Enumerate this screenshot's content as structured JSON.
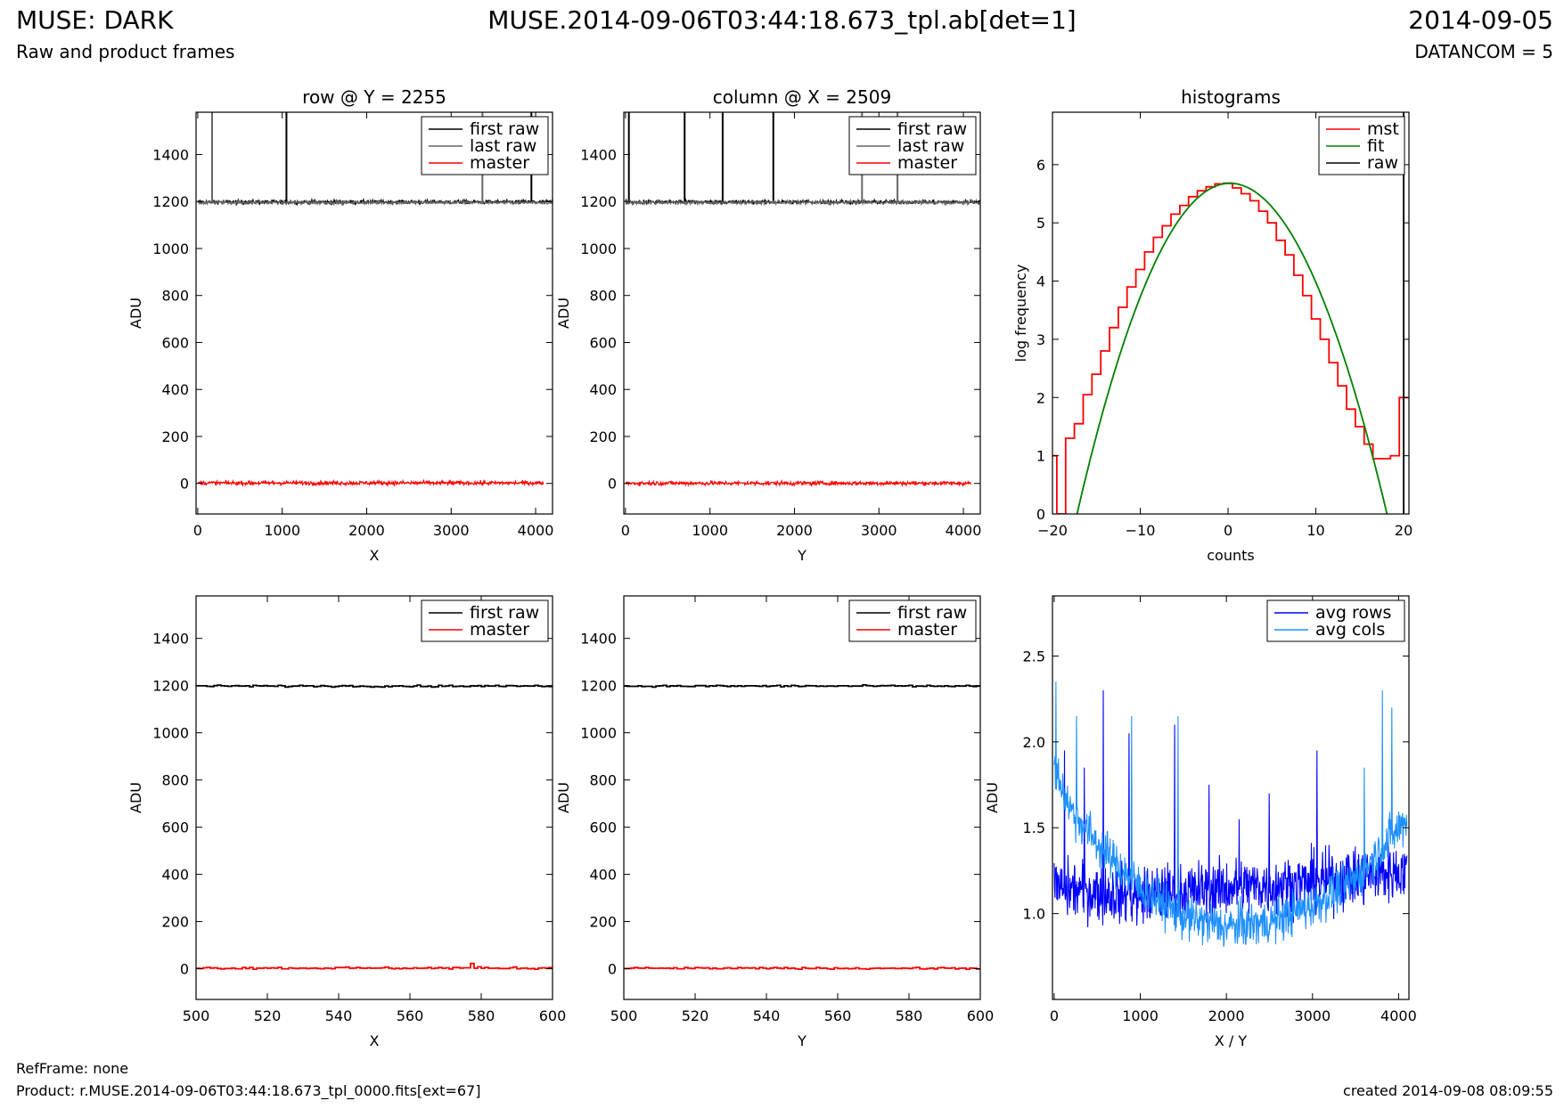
{
  "header": {
    "title": "MUSE: DARK",
    "file": "MUSE.2014-09-06T03:44:18.673_tpl.ab[det=1]",
    "date": "2014-09-05",
    "subtitle": "Raw and product frames",
    "datancom": "DATANCOM = 5"
  },
  "footer": {
    "refframe": "RefFrame: none",
    "product": "Product: r.MUSE.2014-09-06T03:44:18.673_tpl_0000.fits[ext=67]",
    "created": "created 2014-09-08 08:09:55"
  },
  "colors": {
    "first_raw": "#000000",
    "last_raw": "#666666",
    "master": "#ff0000",
    "mst": "#ff0000",
    "fit": "#008000",
    "raw": "#000000",
    "avg_rows": "#0000ff",
    "avg_cols": "#1e90ff"
  },
  "chart_data": [
    {
      "id": "row",
      "type": "line",
      "title": "row @ Y = 2255",
      "xlabel": "X",
      "ylabel": "ADU",
      "xlim": [
        -20,
        4200
      ],
      "ylim": [
        -130,
        1580
      ],
      "xticks": [
        0,
        1000,
        2000,
        3000,
        4000
      ],
      "yticks": [
        0,
        200,
        400,
        600,
        800,
        1000,
        1200,
        1400
      ],
      "legend": "top-right",
      "series": [
        {
          "name": "first raw",
          "color_key": "first_raw",
          "level": 1198,
          "noise": 6,
          "x_range": [
            0,
            4200
          ],
          "spikes_x": [
            1050,
            3950
          ]
        },
        {
          "name": "last raw",
          "color_key": "last_raw",
          "level": 1196,
          "noise": 5,
          "x_range": [
            0,
            4200
          ],
          "spikes_x": [
            170,
            3370
          ]
        },
        {
          "name": "master",
          "color_key": "master",
          "level": 2,
          "noise": 6,
          "x_range": [
            0,
            4096
          ],
          "spikes_x": []
        }
      ]
    },
    {
      "id": "column",
      "type": "line",
      "title": "column @ X = 2509",
      "xlabel": "Y",
      "ylabel": "ADU",
      "xlim": [
        -20,
        4200
      ],
      "ylim": [
        -130,
        1580
      ],
      "xticks": [
        0,
        1000,
        2000,
        3000,
        4000
      ],
      "yticks": [
        0,
        200,
        400,
        600,
        800,
        1000,
        1200,
        1400
      ],
      "legend": "top-right",
      "series": [
        {
          "name": "first raw",
          "color_key": "first_raw",
          "level": 1198,
          "noise": 6,
          "x_range": [
            0,
            4200
          ],
          "spikes_x": [
            40,
            700,
            1150,
            1750
          ]
        },
        {
          "name": "last raw",
          "color_key": "last_raw",
          "level": 1196,
          "noise": 5,
          "x_range": [
            0,
            4200
          ],
          "spikes_x": [
            2800,
            3220
          ]
        },
        {
          "name": "master",
          "color_key": "master",
          "level": 1,
          "noise": 6,
          "x_range": [
            0,
            4096
          ],
          "spikes_x": []
        }
      ]
    },
    {
      "id": "histograms",
      "type": "line",
      "title": "histograms",
      "xlabel": "counts",
      "ylabel": "log frequency",
      "xlim": [
        -20,
        20.6
      ],
      "ylim": [
        0,
        6.9
      ],
      "xticks": [
        -20,
        -10,
        0,
        10,
        20
      ],
      "xtick_labels": [
        "−20",
        "−10",
        "0",
        "10",
        "20"
      ],
      "yticks": [
        0,
        1,
        2,
        3,
        4,
        5,
        6
      ],
      "legend": "top-right",
      "series": [
        {
          "name": "mst",
          "color_key": "mst",
          "drawstyle": "steps",
          "x": [
            -20,
            -19,
            -18,
            -17,
            -16,
            -15,
            -14,
            -13,
            -12,
            -11,
            -10,
            -9,
            -8,
            -7,
            -6,
            -5,
            -4,
            -3,
            -2,
            -1,
            0,
            1,
            2,
            3,
            4,
            5,
            6,
            7,
            8,
            9,
            10,
            11,
            12,
            13,
            14,
            15,
            16,
            17,
            18,
            19,
            20
          ],
          "y": [
            1.0,
            0,
            1.3,
            1.55,
            2.05,
            2.4,
            2.8,
            3.2,
            3.55,
            3.9,
            4.2,
            4.5,
            4.75,
            4.95,
            5.15,
            5.3,
            5.45,
            5.55,
            5.62,
            5.67,
            5.68,
            5.6,
            5.5,
            5.38,
            5.2,
            5.0,
            4.7,
            4.45,
            4.1,
            3.75,
            3.35,
            3.0,
            2.6,
            2.2,
            1.8,
            1.5,
            1.2,
            0.95,
            0.95,
            1.0,
            2.0
          ]
        },
        {
          "name": "fit",
          "color_key": "fit",
          "drawstyle": "parabola",
          "peak_x": 0.2,
          "peak_y": 5.68,
          "zero_left": -17.2,
          "zero_right": 18.1
        },
        {
          "name": "raw",
          "color_key": "raw",
          "drawstyle": "vline",
          "x": [
            20
          ]
        }
      ]
    },
    {
      "id": "row-zoom",
      "type": "line",
      "xlabel": "X",
      "ylabel": "ADU",
      "xlim": [
        500,
        600
      ],
      "ylim": [
        -130,
        1580
      ],
      "xticks": [
        500,
        520,
        540,
        560,
        580,
        600
      ],
      "yticks": [
        0,
        200,
        400,
        600,
        800,
        1000,
        1200,
        1400
      ],
      "legend": "top-right",
      "series": [
        {
          "name": "first raw",
          "color_key": "first_raw",
          "level": 1198,
          "noise": 4,
          "x_range": [
            500,
            600
          ],
          "drawstyle": "steps"
        },
        {
          "name": "master",
          "color_key": "master",
          "level": 3,
          "noise": 5,
          "x_range": [
            500,
            600
          ],
          "drawstyle": "steps",
          "spike_at": 577,
          "spike_value": 22
        }
      ]
    },
    {
      "id": "column-zoom",
      "type": "line",
      "xlabel": "Y",
      "ylabel": "ADU",
      "xlim": [
        500,
        600
      ],
      "ylim": [
        -130,
        1580
      ],
      "xticks": [
        500,
        520,
        540,
        560,
        580,
        600
      ],
      "yticks": [
        0,
        200,
        400,
        600,
        800,
        1000,
        1200,
        1400
      ],
      "legend": "top-right",
      "series": [
        {
          "name": "first raw",
          "color_key": "first_raw",
          "level": 1198,
          "noise": 4,
          "x_range": [
            500,
            600
          ],
          "drawstyle": "steps"
        },
        {
          "name": "master",
          "color_key": "master",
          "level": 2,
          "noise": 4,
          "x_range": [
            500,
            600
          ],
          "drawstyle": "steps"
        }
      ]
    },
    {
      "id": "averages",
      "type": "line",
      "xlabel": "X / Y",
      "ylabel": "ADU",
      "xlim": [
        -20,
        4120
      ],
      "ylim": [
        0.5,
        2.85
      ],
      "xticks": [
        0,
        1000,
        2000,
        3000,
        4000
      ],
      "yticks": [
        1.0,
        1.5,
        2.0,
        2.5
      ],
      "ytick_labels": [
        "1.0",
        "1.5",
        "2.0",
        "2.5"
      ],
      "legend": "top-right",
      "series": [
        {
          "name": "avg rows",
          "color_key": "avg_rows",
          "trend": [
            [
              0,
              1.15
            ],
            [
              1000,
              1.1
            ],
            [
              2000,
              1.15
            ],
            [
              3000,
              1.18
            ],
            [
              4096,
              1.25
            ]
          ],
          "noise": 0.12,
          "n": 820,
          "spikes": [
            [
              120,
              1.95
            ],
            [
              350,
              1.85
            ],
            [
              570,
              2.3
            ],
            [
              870,
              2.05
            ],
            [
              1400,
              2.1
            ],
            [
              1800,
              1.75
            ],
            [
              2150,
              1.55
            ],
            [
              2500,
              1.7
            ],
            [
              3050,
              1.95
            ]
          ]
        },
        {
          "name": "avg cols",
          "color_key": "avg_cols",
          "trend": [
            [
              0,
              1.85
            ],
            [
              200,
              1.6
            ],
            [
              600,
              1.35
            ],
            [
              1000,
              1.15
            ],
            [
              1500,
              0.98
            ],
            [
              2000,
              0.92
            ],
            [
              2500,
              0.95
            ],
            [
              3000,
              1.05
            ],
            [
              3500,
              1.2
            ],
            [
              4096,
              1.55
            ]
          ],
          "noise": 0.09,
          "n": 820,
          "spikes": [
            [
              20,
              2.35
            ],
            [
              260,
              2.15
            ],
            [
              900,
              2.15
            ],
            [
              1440,
              2.15
            ],
            [
              3600,
              1.85
            ],
            [
              3810,
              2.3
            ],
            [
              3920,
              2.2
            ]
          ]
        }
      ]
    }
  ]
}
